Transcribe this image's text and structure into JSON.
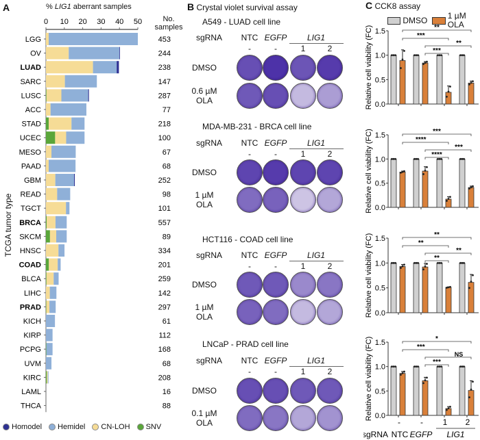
{
  "panel_a": {
    "letter": "A",
    "xlabel_prefix": "% ",
    "xlabel_gene": "LIG1",
    "xlabel_suffix": " aberrant samples",
    "ylabel": "TCGA tumor type",
    "count_header_1": "No.",
    "count_header_2": "samples",
    "legend": [
      {
        "label": "Homodel",
        "color": "#2e3192"
      },
      {
        "label": "Hemidel",
        "color": "#8fb0d8"
      },
      {
        "label": "CN-LOH",
        "color": "#f6dc96"
      },
      {
        "label": "SNV",
        "color": "#5aa63a"
      }
    ]
  },
  "panel_b": {
    "letter": "B",
    "title": "Crystal violet survival assay",
    "sgrna_label": "sgRNA",
    "columns": [
      {
        "name": "NTC",
        "sub": "-",
        "italic": false
      },
      {
        "name": "EGFP",
        "sub": "-",
        "italic": true
      },
      {
        "name": "LIG1",
        "sub": "1",
        "italic": true
      },
      {
        "name": "",
        "sub": "2",
        "italic": true
      }
    ],
    "sections": [
      {
        "title": "A549 - LUAD cell line",
        "rows": [
          {
            "label1": "DMSO",
            "label2": "",
            "density": [
              0.75,
              0.9,
              0.72,
              0.85
            ]
          },
          {
            "label1": "0.6 µM",
            "label2": "OLA",
            "density": [
              0.7,
              0.75,
              0.2,
              0.35
            ]
          }
        ]
      },
      {
        "title": "MDA-MB-231 - BRCA cell line",
        "rows": [
          {
            "label1": "DMSO",
            "label2": "",
            "density": [
              0.8,
              0.85,
              0.8,
              0.8
            ]
          },
          {
            "label1": "1 µM",
            "label2": "OLA",
            "density": [
              0.6,
              0.65,
              0.15,
              0.3
            ]
          }
        ]
      },
      {
        "title": "HCT116 - COAD cell line",
        "rows": [
          {
            "label1": "DMSO",
            "label2": "",
            "density": [
              0.7,
              0.7,
              0.45,
              0.55
            ]
          },
          {
            "label1": "1 µM",
            "label2": "OLA",
            "density": [
              0.65,
              0.6,
              0.2,
              0.3
            ]
          }
        ]
      },
      {
        "title": "LNCaP - PRAD cell line",
        "rows": [
          {
            "label1": "DMSO",
            "label2": "",
            "density": [
              0.75,
              0.75,
              0.7,
              0.7
            ]
          },
          {
            "label1": "0.1 µM",
            "label2": "OLA",
            "density": [
              0.6,
              0.55,
              0.3,
              0.4
            ]
          }
        ]
      }
    ]
  },
  "panel_c": {
    "letter": "C",
    "title": "CCK8 assay",
    "legend": [
      {
        "label": "DMSO",
        "color": "#d0d0d0"
      },
      {
        "label": "1 µM OLA",
        "color": "#d9803a"
      }
    ],
    "x_sub": [
      "-",
      "-",
      "1",
      "2"
    ],
    "sgrna_label": "sgRNA",
    "x_names": [
      "NTC",
      "EGFP",
      "LIG1"
    ]
  },
  "chart_data": [
    {
      "type": "bar",
      "stacked": true,
      "orientation": "horizontal",
      "xlabel": "% LIG1 aberrant samples",
      "ylabel": "TCGA tumor type",
      "xlim": [
        0,
        50
      ],
      "xticks": [
        "0",
        "10",
        "20",
        "30",
        "40",
        "50"
      ],
      "categories": [
        "LGG",
        "OV",
        "LUAD",
        "SARC",
        "LUSC",
        "ACC",
        "STAD",
        "UCEC",
        "MESO",
        "PAAD",
        "GBM",
        "READ",
        "TGCT",
        "BRCA",
        "SKCM",
        "HNSC",
        "COAD",
        "BLCA",
        "LIHC",
        "PRAD",
        "KICH",
        "KIRP",
        "PCPG",
        "UVM",
        "KIRC",
        "LAML",
        "THCA"
      ],
      "bold_categories": [
        "LUAD",
        "BRCA",
        "COAD",
        "PRAD"
      ],
      "n_samples": [
        453,
        244,
        238,
        147,
        287,
        77,
        218,
        100,
        67,
        68,
        252,
        98,
        101,
        557,
        89,
        334,
        201,
        259,
        142,
        297,
        61,
        112,
        168,
        68,
        208,
        16,
        88
      ],
      "series": [
        {
          "name": "SNV",
          "values": [
            0,
            0,
            0,
            0,
            0.3,
            0,
            1.5,
            5,
            0,
            0,
            0,
            0,
            0,
            0.4,
            2.2,
            0,
            1.6,
            0.3,
            0,
            0.2,
            0,
            0,
            0.2,
            0,
            0.5,
            0,
            0
          ]
        },
        {
          "name": "CN-LOH",
          "values": [
            1.5,
            12.4,
            25.6,
            10.3,
            8.1,
            2.5,
            12.4,
            6,
            3,
            1.5,
            5.1,
            6.1,
            10.9,
            4.8,
            3.4,
            6.8,
            4.8,
            3.9,
            2.1,
            1.7,
            0,
            0,
            0,
            0,
            0.5,
            0,
            0
          ]
        },
        {
          "name": "Hemidel",
          "values": [
            48.5,
            27.6,
            12.9,
            17.4,
            14.6,
            19.5,
            7.1,
            10,
            13.2,
            14.6,
            10.2,
            7.1,
            1.9,
            6.1,
            5.7,
            3.3,
            1.6,
            2.7,
            3.6,
            3.4,
            4.9,
            3.6,
            3.4,
            3,
            0.4,
            0,
            0
          ]
        },
        {
          "name": "Homodel",
          "values": [
            0,
            0.3,
            1.2,
            0,
            0.4,
            0,
            0,
            0,
            0,
            0,
            0.4,
            0,
            0,
            0,
            0,
            0,
            0,
            0,
            0,
            0,
            0,
            0,
            0,
            0,
            0,
            0,
            0
          ]
        }
      ]
    },
    {
      "type": "bar",
      "cell_line": "A549",
      "ylabel": "Relative cell viability (FC)",
      "ylim": [
        0,
        1.5
      ],
      "yticks": [
        "0.0",
        "0.5",
        "1.0",
        "1.5"
      ],
      "categories": [
        "NTC",
        "EGFP",
        "LIG1 1",
        "LIG1 2"
      ],
      "series": [
        {
          "name": "DMSO",
          "values": [
            1,
            1,
            1,
            1
          ],
          "sd": [
            0,
            0,
            0,
            0
          ]
        },
        {
          "name": "1 µM OLA",
          "values": [
            0.89,
            0.84,
            0.24,
            0.43
          ],
          "sd": [
            0.22,
            0.03,
            0.13,
            0.04
          ]
        }
      ],
      "significance": [
        {
          "from": 0,
          "to": 3,
          "label": "**"
        },
        {
          "from": 0,
          "to": 2,
          "label": "***"
        },
        {
          "from": 1,
          "to": 3,
          "label": "**"
        },
        {
          "from": 1,
          "to": 2,
          "label": "***"
        }
      ]
    },
    {
      "type": "bar",
      "cell_line": "MDA-MB-231",
      "ylabel": "Relative cell viability (FC)",
      "ylim": [
        0,
        1.5
      ],
      "yticks": [
        "0.0",
        "0.5",
        "1.0",
        "1.5"
      ],
      "categories": [
        "NTC",
        "EGFP",
        "LIG1 1",
        "LIG1 2"
      ],
      "series": [
        {
          "name": "DMSO",
          "values": [
            1,
            1,
            1,
            1
          ],
          "sd": [
            0,
            0,
            0,
            0
          ]
        },
        {
          "name": "1 µM OLA",
          "values": [
            0.73,
            0.75,
            0.17,
            0.41
          ],
          "sd": [
            0.02,
            0.09,
            0.05,
            0.03
          ]
        }
      ],
      "significance": [
        {
          "from": 0,
          "to": 3,
          "label": "***"
        },
        {
          "from": 0,
          "to": 2,
          "label": "****"
        },
        {
          "from": 1,
          "to": 3,
          "label": "***"
        },
        {
          "from": 1,
          "to": 2,
          "label": "****"
        }
      ]
    },
    {
      "type": "bar",
      "cell_line": "HCT116",
      "ylabel": "Relative cell viability (FC)",
      "ylim": [
        0,
        1.5
      ],
      "yticks": [
        "0.0",
        "0.5",
        "1.0",
        "1.5"
      ],
      "categories": [
        "NTC",
        "EGFP",
        "LIG1 1",
        "LIG1 2"
      ],
      "series": [
        {
          "name": "DMSO",
          "values": [
            1,
            1,
            1,
            1
          ],
          "sd": [
            0,
            0,
            0,
            0
          ]
        },
        {
          "name": "1 µM OLA",
          "values": [
            0.93,
            0.92,
            0.51,
            0.61
          ],
          "sd": [
            0.04,
            0.07,
            0.01,
            0.16
          ]
        }
      ],
      "significance": [
        {
          "from": 0,
          "to": 3,
          "label": "**"
        },
        {
          "from": 0,
          "to": 2,
          "label": "**"
        },
        {
          "from": 1,
          "to": 3,
          "label": "**"
        },
        {
          "from": 1,
          "to": 2,
          "label": "**"
        }
      ]
    },
    {
      "type": "bar",
      "cell_line": "LNCaP",
      "ylabel": "Relative cell viability (FC)",
      "ylim": [
        0,
        1.5
      ],
      "yticks": [
        "0.0",
        "0.5",
        "1.0",
        "1.5"
      ],
      "categories": [
        "NTC",
        "EGFP",
        "LIG1 1",
        "LIG1 2"
      ],
      "series": [
        {
          "name": "DMSO",
          "values": [
            1,
            1,
            1,
            1
          ],
          "sd": [
            0,
            0,
            0,
            0
          ]
        },
        {
          "name": "1 µM OLA",
          "values": [
            0.86,
            0.71,
            0.14,
            0.51
          ],
          "sd": [
            0.04,
            0.07,
            0.04,
            0.2
          ]
        }
      ],
      "significance": [
        {
          "from": 0,
          "to": 3,
          "label": "*"
        },
        {
          "from": 0,
          "to": 2,
          "label": "***"
        },
        {
          "from": 1,
          "to": 3,
          "label": "NS"
        },
        {
          "from": 1,
          "to": 2,
          "label": "***"
        }
      ]
    }
  ]
}
